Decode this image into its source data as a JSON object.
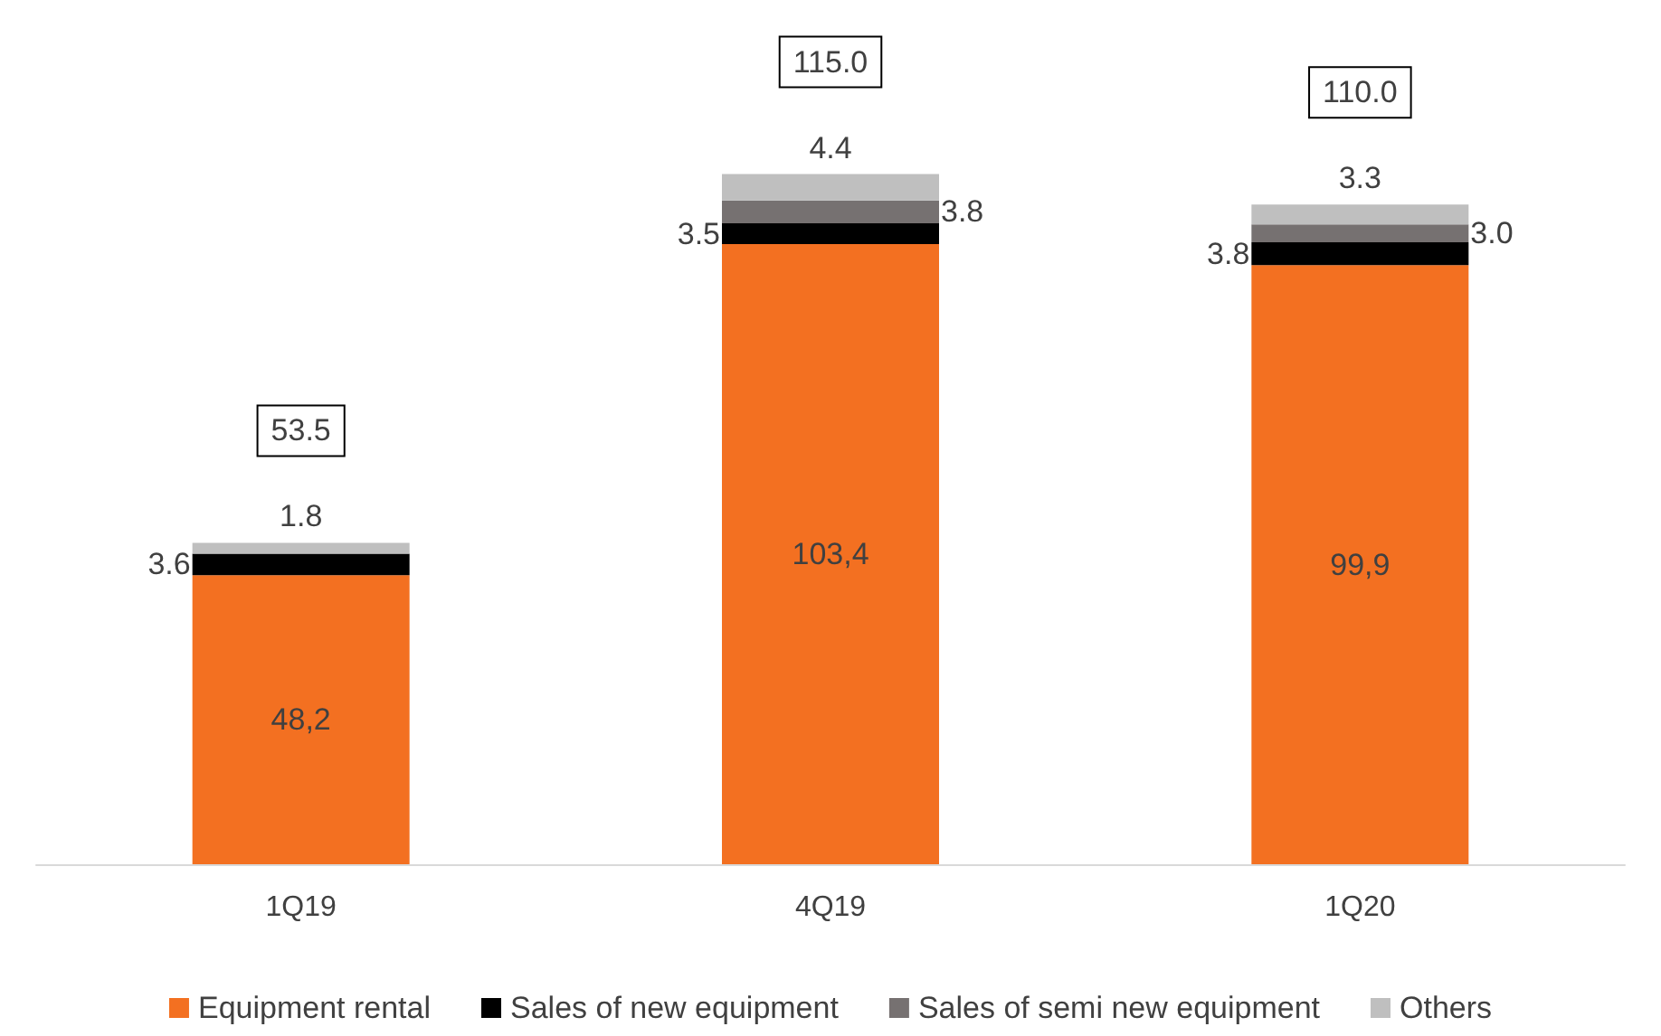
{
  "chart_data": {
    "type": "bar",
    "stacked": true,
    "categories": [
      "1Q19",
      "4Q19",
      "1Q20"
    ],
    "series": [
      {
        "name": "Equipment rental",
        "color": "#f37021",
        "values": [
          48.2,
          103.4,
          99.9
        ],
        "value_labels": [
          "48,2",
          "103,4",
          "99,9"
        ]
      },
      {
        "name": "Sales of new equipment",
        "color": "#000000",
        "values": [
          3.6,
          3.5,
          3.8
        ],
        "value_labels": [
          "3.6",
          "3.5",
          "3.8"
        ]
      },
      {
        "name": "Sales of semi new equipment",
        "color": "#767171",
        "values": [
          null,
          3.8,
          3.0
        ],
        "value_labels": [
          null,
          "3.8",
          "3.0"
        ]
      },
      {
        "name": "Others",
        "color": "#bfbfbf",
        "values": [
          1.8,
          4.4,
          3.3
        ],
        "value_labels": [
          "1.8",
          "4.4",
          "3.3"
        ]
      }
    ],
    "totals": [
      "53.5",
      "115.0",
      "110.0"
    ],
    "legend": "bottom"
  }
}
